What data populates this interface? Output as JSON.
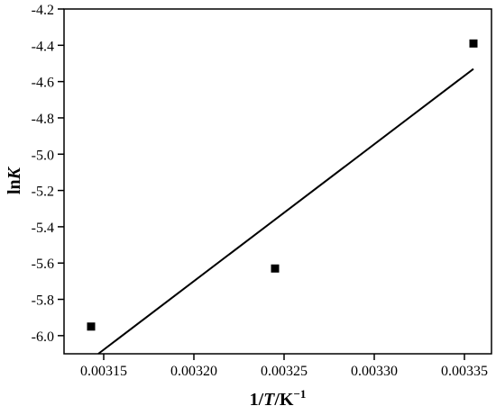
{
  "chart_data": {
    "type": "scatter",
    "title": "",
    "xlabel": {
      "prefix": "1/",
      "italic": "T",
      "suffix": "/K",
      "sup": "−1"
    },
    "ylabel": {
      "prefix": "ln",
      "italic": "K"
    },
    "xlim": [
      0.003128,
      0.003365
    ],
    "ylim": [
      -6.1,
      -4.2
    ],
    "xticks": [
      0.00315,
      0.0032,
      0.00325,
      0.0033,
      0.00335
    ],
    "xtick_labels": [
      "0.00315",
      "0.00320",
      "0.00325",
      "0.00330",
      "0.00335"
    ],
    "yticks": [
      -6.0,
      -5.8,
      -5.6,
      -5.4,
      -5.2,
      -5.0,
      -4.8,
      -4.6,
      -4.4,
      -4.2
    ],
    "ytick_labels": [
      "-6.0",
      "-5.8",
      "-5.6",
      "-5.4",
      "-5.2",
      "-5.0",
      "-4.8",
      "-4.6",
      "-4.4",
      "-4.2"
    ],
    "points": [
      {
        "x": 0.003143,
        "y": -5.95
      },
      {
        "x": 0.003245,
        "y": -5.63
      },
      {
        "x": 0.003355,
        "y": -4.39
      }
    ],
    "fit_line": {
      "x": [
        0.003147,
        0.003355
      ],
      "y": [
        -6.1,
        -4.53
      ]
    },
    "grid": false,
    "legend": "none",
    "marker": "square",
    "color": "#000000"
  }
}
